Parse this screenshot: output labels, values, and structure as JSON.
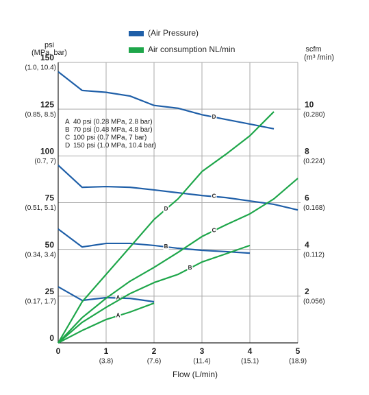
{
  "chart_data": {
    "type": "line",
    "y_label": "psi",
    "y_sublabel": "(MPa, bar)",
    "y2_label": "scfm",
    "y2_sublabel": "(m³ /min)",
    "x_label": "Flow (L/min)",
    "legend": [
      {
        "name": "(Air Pressure)",
        "color": "#1f5fa8"
      },
      {
        "name": "Air consumption NL/min",
        "color": "#1ea64a"
      }
    ],
    "key": [
      {
        "letter": "A",
        "text": "40 psi (0.28 MPa, 2.8 bar)"
      },
      {
        "letter": "B",
        "text": "70 psi (0.48 MPa, 4.8 bar)"
      },
      {
        "letter": "C",
        "text": "100 psi (0.7 MPa, 7 bar)"
      },
      {
        "letter": "D",
        "text": "150 psi (1.0 MPa, 10.4 bar)"
      }
    ],
    "xlim": [
      0,
      5
    ],
    "xticks": [
      0,
      1,
      2,
      3,
      4,
      5
    ],
    "xtick_sublabels": [
      null,
      "(3.8)",
      "(7.6)",
      "(11.4)",
      "(15.1)",
      "(18.9)"
    ],
    "ylim": [
      0,
      150
    ],
    "yticks": [
      0,
      25,
      50,
      75,
      100,
      125,
      150
    ],
    "ytick_sublabels": [
      null,
      "(0.17, 1.7)",
      "(0.34, 3.4)",
      "(0.51, 5.1)",
      "(0.7, 7)",
      "(0.85, 8.5)",
      "(1.0, 10.4)"
    ],
    "y2lim": [
      0,
      12
    ],
    "y2ticks": [
      2,
      4,
      6,
      8,
      10
    ],
    "y2tick_sublabels": [
      "(0.056)",
      "(0.112)",
      "(0.168)",
      "(0.224)",
      "(0.280)"
    ],
    "grid": true,
    "series": [
      {
        "name": "D",
        "color": "#1f5fa8",
        "axis": "y",
        "x": [
          0,
          0.5,
          1,
          1.5,
          2,
          2.5,
          3,
          3.5,
          4,
          4.5
        ],
        "values": [
          145,
          135,
          134,
          132,
          127,
          125.5,
          122,
          119.5,
          117,
          114.5
        ]
      },
      {
        "name": "C",
        "color": "#1f5fa8",
        "axis": "y",
        "x": [
          0,
          0.5,
          1,
          1.5,
          2,
          2.5,
          3,
          3.5,
          4,
          4.5,
          5
        ],
        "values": [
          95,
          83.2,
          83.6,
          83.2,
          81.8,
          80.3,
          78.8,
          77.7,
          75.9,
          74.1,
          71.1
        ]
      },
      {
        "name": "B",
        "color": "#1f5fa8",
        "axis": "y",
        "x": [
          0,
          0.5,
          1,
          1.5,
          2,
          2.5,
          3,
          3.5,
          4
        ],
        "values": [
          60.9,
          51.3,
          53.2,
          53.2,
          52.1,
          50.6,
          49.5,
          48.8,
          48
        ]
      },
      {
        "name": "A",
        "color": "#1f5fa8",
        "axis": "y",
        "x": [
          0,
          0.5,
          1,
          1.5,
          2
        ],
        "values": [
          30,
          22.7,
          24.2,
          23.8,
          22
        ]
      },
      {
        "name": "D",
        "color": "#1ea64a",
        "axis": "y2",
        "x": [
          0,
          0.5,
          1,
          1.5,
          2,
          2.5,
          3,
          3.5,
          4,
          4.5
        ],
        "values": [
          0,
          1.76,
          2.93,
          4.1,
          5.28,
          6.16,
          7.33,
          8.07,
          8.86,
          9.89
        ]
      },
      {
        "name": "C",
        "color": "#1ea64a",
        "axis": "y2",
        "x": [
          0,
          0.5,
          1,
          1.5,
          2,
          2.5,
          3,
          3.5,
          4,
          4.5,
          5
        ],
        "values": [
          0,
          1.08,
          1.91,
          2.64,
          3.23,
          3.87,
          4.55,
          5.05,
          5.52,
          6.16,
          7.04
        ]
      },
      {
        "name": "B",
        "color": "#1ea64a",
        "axis": "y2",
        "x": [
          0,
          0.5,
          1,
          1.5,
          2,
          2.5,
          3,
          3.5,
          4
        ],
        "values": [
          0,
          0.88,
          1.52,
          2.11,
          2.58,
          2.93,
          3.46,
          3.81,
          4.17
        ]
      },
      {
        "name": "A",
        "color": "#1ea64a",
        "axis": "y2",
        "x": [
          0,
          0.5,
          1,
          1.5,
          2
        ],
        "values": [
          0,
          0.53,
          1.0,
          1.32,
          1.7
        ]
      }
    ]
  }
}
